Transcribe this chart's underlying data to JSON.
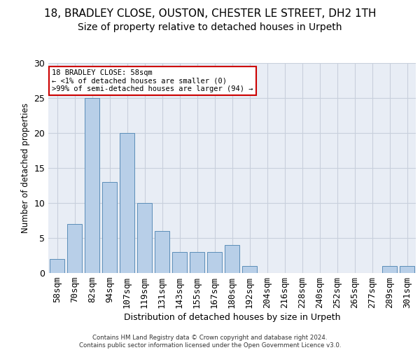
{
  "title_line1": "18, BRADLEY CLOSE, OUSTON, CHESTER LE STREET, DH2 1TH",
  "title_line2": "Size of property relative to detached houses in Urpeth",
  "xlabel": "Distribution of detached houses by size in Urpeth",
  "ylabel": "Number of detached properties",
  "categories": [
    "58sqm",
    "70sqm",
    "82sqm",
    "94sqm",
    "107sqm",
    "119sqm",
    "131sqm",
    "143sqm",
    "155sqm",
    "167sqm",
    "180sqm",
    "192sqm",
    "204sqm",
    "216sqm",
    "228sqm",
    "240sqm",
    "252sqm",
    "265sqm",
    "277sqm",
    "289sqm",
    "301sqm"
  ],
  "values": [
    2,
    7,
    25,
    13,
    20,
    10,
    6,
    3,
    3,
    3,
    4,
    1,
    0,
    0,
    0,
    0,
    0,
    0,
    0,
    1,
    1
  ],
  "bar_color": "#b8cfe8",
  "bar_edge_color": "#5b8db8",
  "annotation_text": "18 BRADLEY CLOSE: 58sqm\n← <1% of detached houses are smaller (0)\n>99% of semi-detached houses are larger (94) →",
  "annotation_box_color": "#ffffff",
  "annotation_box_edge": "#cc0000",
  "ylim": [
    0,
    30
  ],
  "yticks": [
    0,
    5,
    10,
    15,
    20,
    25,
    30
  ],
  "footer_text": "Contains HM Land Registry data © Crown copyright and database right 2024.\nContains public sector information licensed under the Open Government Licence v3.0.",
  "bg_color": "#ffffff",
  "grid_color": "#c8d0dc",
  "title_fontsize": 11,
  "subtitle_fontsize": 10
}
